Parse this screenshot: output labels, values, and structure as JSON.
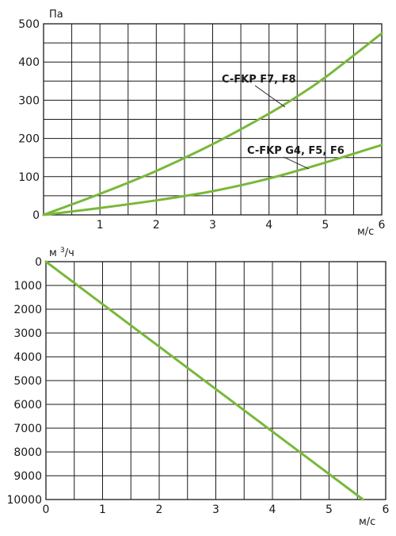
{
  "colors": {
    "series": "#79b83a",
    "grid": "#1a1a1a",
    "text": "#1a1a1a"
  },
  "chart_data": [
    {
      "type": "line",
      "ylabel": "Па",
      "xlabel": "м/с",
      "xlim": [
        0,
        6
      ],
      "ylim": [
        0,
        500
      ],
      "xticks": [
        "1",
        "2",
        "3",
        "4",
        "5",
        "6"
      ],
      "yticks": [
        "0",
        "100",
        "200",
        "300",
        "400",
        "500"
      ],
      "grid": true,
      "series": [
        {
          "name": "C-FKP F7, F8",
          "x": [
            0,
            1,
            2,
            3,
            4,
            4.5,
            5,
            6
          ],
          "y": [
            0,
            55,
            115,
            185,
            265,
            310,
            360,
            475
          ]
        },
        {
          "name": "C-FKP G4, F5, F6",
          "x": [
            0,
            1,
            2,
            3,
            4,
            5,
            6
          ],
          "y": [
            0,
            18,
            38,
            62,
            95,
            137,
            183
          ]
        }
      ]
    },
    {
      "type": "line",
      "ylabel": "м³/ч",
      "xlabel": "м/с",
      "xlim": [
        0,
        6
      ],
      "ylim": [
        0,
        10000
      ],
      "y_inverted": true,
      "xticks": [
        "0",
        "1",
        "2",
        "3",
        "4",
        "5",
        "6"
      ],
      "yticks": [
        "0",
        "1000",
        "2000",
        "3000",
        "4000",
        "5000",
        "6000",
        "7000",
        "8000",
        "9000",
        "10000"
      ],
      "grid": true,
      "series": [
        {
          "x": [
            0,
            5.6
          ],
          "y": [
            0,
            10000
          ]
        }
      ]
    }
  ]
}
